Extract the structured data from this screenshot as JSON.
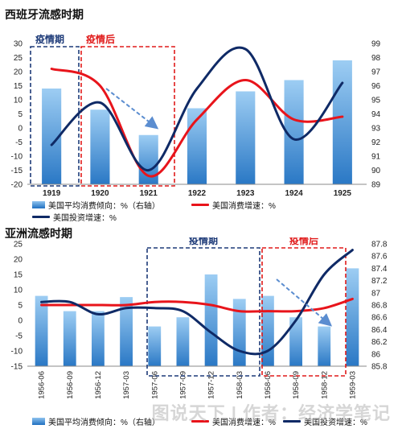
{
  "colors": {
    "bar_top": "#9dcdf3",
    "bar_bottom": "#2a78c5",
    "consumption_line": "#e8141b",
    "investment_line": "#0f2a66",
    "pre_box": "#1d3a78",
    "post_box": "#e01a1a",
    "arrow": "#5b8dd0"
  },
  "chart_data": [
    {
      "type": "bar",
      "title": "西班牙流感时期",
      "categories": [
        "1919",
        "1920",
        "1921",
        "1922",
        "1923",
        "1924",
        "1925"
      ],
      "left_axis": {
        "range": [
          -20,
          30
        ],
        "ticks": [
          30,
          25,
          20,
          15,
          10,
          5,
          0,
          -5,
          -10,
          -15,
          -20
        ]
      },
      "right_axis": {
        "range": [
          89,
          99
        ],
        "ticks": [
          99,
          98,
          97,
          96,
          95,
          94,
          93,
          92,
          91,
          90,
          89
        ]
      },
      "series": [
        {
          "name": "美国平均消费倾向：%（右轴）",
          "kind": "bar",
          "axis": "right",
          "values": [
            95.8,
            94.3,
            92.5,
            94.4,
            95.6,
            96.4,
            97.8
          ]
        },
        {
          "name": "美国消费增速：%",
          "kind": "line",
          "axis": "left",
          "values": [
            21,
            15,
            -17,
            3,
            17,
            3,
            4
          ]
        },
        {
          "name": "美国投资增速：%",
          "kind": "line",
          "axis": "left",
          "values": [
            -6,
            9,
            -15,
            14,
            28,
            -4,
            16
          ]
        }
      ],
      "annotations": [
        {
          "label": "疫情期",
          "kind": "pre"
        },
        {
          "label": "疫情后",
          "kind": "post"
        }
      ]
    },
    {
      "type": "bar",
      "title": "亚洲流感时期",
      "categories": [
        "1956-06",
        "1956-09",
        "1956-12",
        "1957-03",
        "1957-06",
        "1957-09",
        "1957-12",
        "1958-03",
        "1958-06",
        "1958-09",
        "1958-12",
        "1959-03"
      ],
      "left_axis": {
        "range": [
          -15,
          25
        ],
        "ticks": [
          25,
          20,
          15,
          10,
          5,
          0,
          -5,
          -10,
          -15
        ]
      },
      "right_axis": {
        "range": [
          85.8,
          87.8
        ],
        "ticks": [
          87.8,
          87.6,
          87.4,
          87.2,
          87.0,
          86.8,
          86.6,
          86.4,
          86.2,
          86.0,
          85.8
        ]
      },
      "series": [
        {
          "name": "美国平均消费倾向：%（右轴）",
          "kind": "bar",
          "axis": "right",
          "values": [
            86.95,
            86.7,
            86.7,
            86.93,
            86.45,
            86.6,
            87.3,
            86.9,
            86.95,
            86.6,
            86.45,
            87.4
          ]
        },
        {
          "name": "美国消费增速：%",
          "kind": "line",
          "axis": "left",
          "values": [
            5,
            5,
            5,
            5,
            6,
            6,
            5,
            3,
            3,
            3,
            4,
            7
          ]
        },
        {
          "name": "美国投资增速：%",
          "kind": "line",
          "axis": "left",
          "values": [
            6,
            6,
            2,
            4,
            4,
            3,
            -4,
            -10,
            -10,
            0,
            15,
            23
          ]
        }
      ],
      "annotations": [
        {
          "label": "疫情期",
          "kind": "pre"
        },
        {
          "label": "疫情后",
          "kind": "post"
        }
      ]
    }
  ],
  "watermark": "图说天下 | 作者：经济学笔记"
}
